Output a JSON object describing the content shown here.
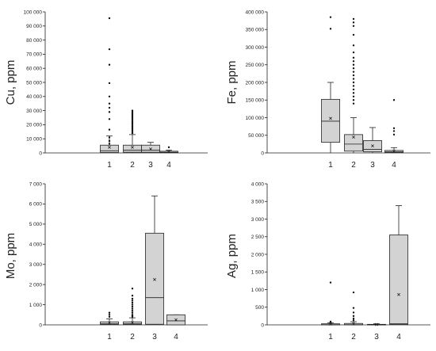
{
  "chart_data": [
    {
      "type": "box",
      "ylabel": "Cu, ppm",
      "categories": [
        "1",
        "2",
        "3",
        "4"
      ],
      "ylim": [
        0,
        100000
      ],
      "yticks": [
        0,
        10000,
        20000,
        30000,
        40000,
        50000,
        60000,
        70000,
        80000,
        90000,
        100000
      ],
      "ytick_labels": [
        "0",
        "10 000",
        "20 000",
        "30 000",
        "40 000",
        "50 000",
        "60 000",
        "70 000",
        "80 000",
        "90 000",
        "100 000"
      ],
      "boxes": [
        {
          "category": "1",
          "whisker_low": 0,
          "q1": 300,
          "median": 1500,
          "q3": 5500,
          "whisker_high": 12000,
          "mean": 4000,
          "outliers": [
            95500,
            73500,
            62500,
            49500,
            40000,
            35000,
            32000,
            29000,
            24000,
            16500,
            11000,
            8500,
            6500
          ]
        },
        {
          "category": "2",
          "whisker_low": 0,
          "q1": 500,
          "median": 2000,
          "q3": 5500,
          "whisker_high": 13000,
          "mean": 4000,
          "outliers": [
            30000,
            29000,
            28000,
            27000,
            26000,
            25000,
            24000,
            23000,
            22000,
            21000,
            20000,
            19000,
            18000,
            17000,
            16000,
            15000,
            14000
          ]
        },
        {
          "category": "3",
          "whisker_low": 0,
          "q1": 500,
          "median": 2000,
          "q3": 5500,
          "whisker_high": 7500,
          "mean": 2800,
          "outliers": []
        },
        {
          "category": "4",
          "whisker_low": 0,
          "q1": 200,
          "median": 500,
          "q3": 1200,
          "whisker_high": 2000,
          "mean": 800,
          "outliers": [
            4000
          ]
        }
      ]
    },
    {
      "type": "box",
      "ylabel": "Fe, ppm",
      "categories": [
        "1",
        "2",
        "3",
        "4"
      ],
      "ylim": [
        0,
        400000
      ],
      "yticks": [
        0,
        50000,
        100000,
        150000,
        200000,
        250000,
        300000,
        350000,
        400000
      ],
      "ytick_labels": [
        "0",
        "50 000",
        "100 000",
        "150 000",
        "200 000",
        "250 000",
        "300 000",
        "350 000",
        "400 000"
      ],
      "boxes": [
        {
          "category": "1",
          "whisker_low": 0,
          "q1": 30000,
          "median": 90000,
          "q3": 152000,
          "whisker_high": 200000,
          "mean": 98000,
          "outliers": [
            385000,
            352000
          ]
        },
        {
          "category": "2",
          "whisker_low": 0,
          "q1": 5000,
          "median": 25000,
          "q3": 52000,
          "whisker_high": 100000,
          "mean": 45000,
          "outliers": [
            380000,
            370000,
            360000,
            335000,
            305000,
            285000,
            270000,
            260000,
            250000,
            240000,
            230000,
            220000,
            210000,
            200000,
            190000,
            180000,
            170000,
            160000,
            150000,
            140000
          ]
        },
        {
          "category": "3",
          "whisker_low": 0,
          "q1": 3000,
          "median": 10000,
          "q3": 35000,
          "whisker_high": 72000,
          "mean": 20000,
          "outliers": []
        },
        {
          "category": "4",
          "whisker_low": 0,
          "q1": 1000,
          "median": 3000,
          "q3": 7000,
          "whisker_high": 15000,
          "mean": 5000,
          "outliers": [
            150000,
            70000,
            62000,
            52000
          ]
        }
      ]
    },
    {
      "type": "box",
      "ylabel": "Mo, ppm",
      "categories": [
        "1",
        "2",
        "3",
        "4"
      ],
      "ylim": [
        0,
        7000
      ],
      "yticks": [
        0,
        1000,
        2000,
        3000,
        4000,
        5000,
        6000,
        7000
      ],
      "ytick_labels": [
        "0",
        "1 000",
        "2 000",
        "3 000",
        "4 000",
        "5 000",
        "6 000",
        "7 000"
      ],
      "boxes": [
        {
          "category": "1",
          "whisker_low": 0,
          "q1": 20,
          "median": 60,
          "q3": 150,
          "whisker_high": 300,
          "mean": 100,
          "outliers": [
            600,
            500,
            400
          ]
        },
        {
          "category": "2",
          "whisker_low": 0,
          "q1": 20,
          "median": 60,
          "q3": 150,
          "whisker_high": 350,
          "mean": 110,
          "outliers": [
            1800,
            1450,
            1300,
            1200,
            1100,
            1000,
            900,
            800,
            700,
            600,
            500,
            450,
            400
          ]
        },
        {
          "category": "3",
          "whisker_low": 0,
          "q1": 30,
          "median": 1350,
          "q3": 4550,
          "whisker_high": 6400,
          "mean": 2250,
          "outliers": []
        },
        {
          "category": "4",
          "whisker_low": 0,
          "q1": 0,
          "median": 200,
          "q3": 500,
          "whisker_high": 500,
          "mean": 250,
          "outliers": []
        }
      ]
    },
    {
      "type": "box",
      "ylabel": "Ag, ppm",
      "categories": [
        "1",
        "2",
        "3",
        "4"
      ],
      "ylim": [
        0,
        4000
      ],
      "yticks": [
        0,
        500,
        1000,
        1500,
        2000,
        2500,
        3000,
        3500,
        4000
      ],
      "ytick_labels": [
        "0",
        "500",
        "1 000",
        "1 500",
        "2 000",
        "2 500",
        "3 000",
        "3 500",
        "4 000"
      ],
      "boxes": [
        {
          "category": "1",
          "whisker_low": 0,
          "q1": 0,
          "median": 5,
          "q3": 30,
          "whisker_high": 60,
          "mean": 20,
          "outliers": [
            1200,
            90,
            80
          ]
        },
        {
          "category": "2",
          "whisker_low": 0,
          "q1": 0,
          "median": 5,
          "q3": 40,
          "whisker_high": 90,
          "mean": 25,
          "outliers": [
            920,
            480,
            350,
            250,
            180,
            130
          ]
        },
        {
          "category": "3",
          "whisker_low": 0,
          "q1": 0,
          "median": 3,
          "q3": 15,
          "whisker_high": 30,
          "mean": 10,
          "outliers": []
        },
        {
          "category": "4",
          "whisker_low": 0,
          "q1": 10,
          "median": 30,
          "q3": 2550,
          "whisker_high": 3380,
          "mean": 860,
          "outliers": []
        }
      ]
    }
  ]
}
